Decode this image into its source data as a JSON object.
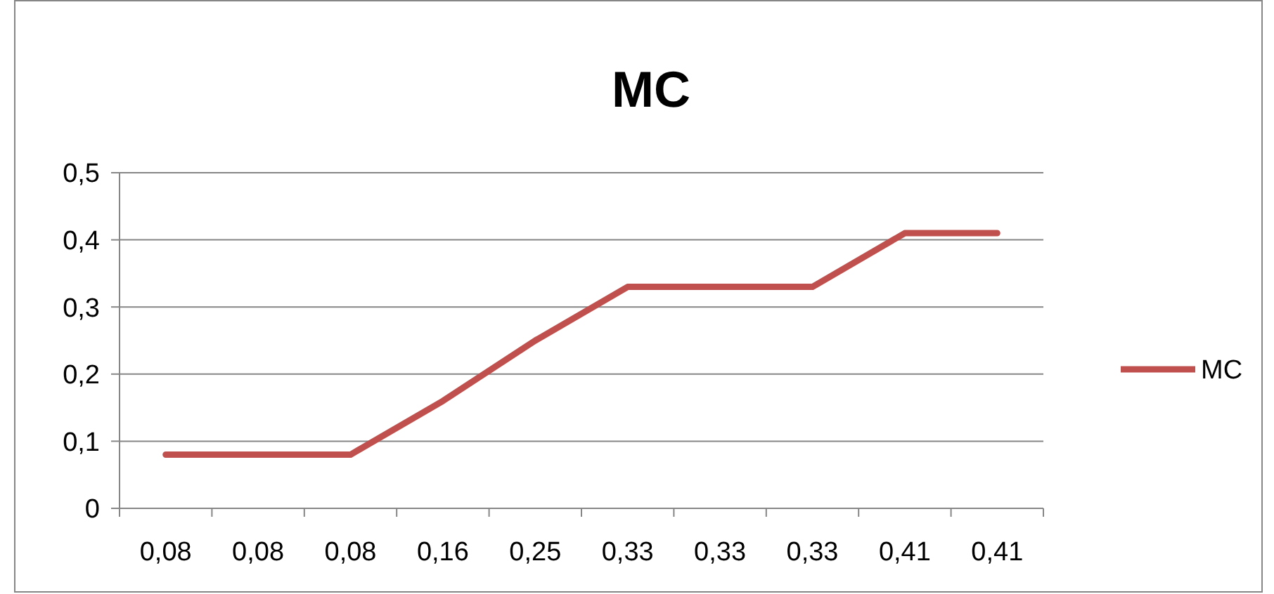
{
  "chart_data": {
    "type": "line",
    "title": "MC",
    "categories": [
      "0,08",
      "0,08",
      "0,08",
      "0,16",
      "0,25",
      "0,33",
      "0,33",
      "0,33",
      "0,41",
      "0,41"
    ],
    "series": [
      {
        "name": "MC",
        "color": "#c0504d",
        "values": [
          0.08,
          0.08,
          0.08,
          0.16,
          0.25,
          0.33,
          0.33,
          0.33,
          0.41,
          0.41
        ]
      }
    ],
    "ylim": [
      0,
      0.5
    ],
    "yticks": [
      {
        "value": 0,
        "label": "0"
      },
      {
        "value": 0.1,
        "label": "0,1"
      },
      {
        "value": 0.2,
        "label": "0,2"
      },
      {
        "value": 0.3,
        "label": "0,3"
      },
      {
        "value": 0.4,
        "label": "0,4"
      },
      {
        "value": 0.5,
        "label": "0,5"
      }
    ],
    "grid": "y",
    "legend": "right",
    "marker": "none",
    "line_style": "solid"
  }
}
